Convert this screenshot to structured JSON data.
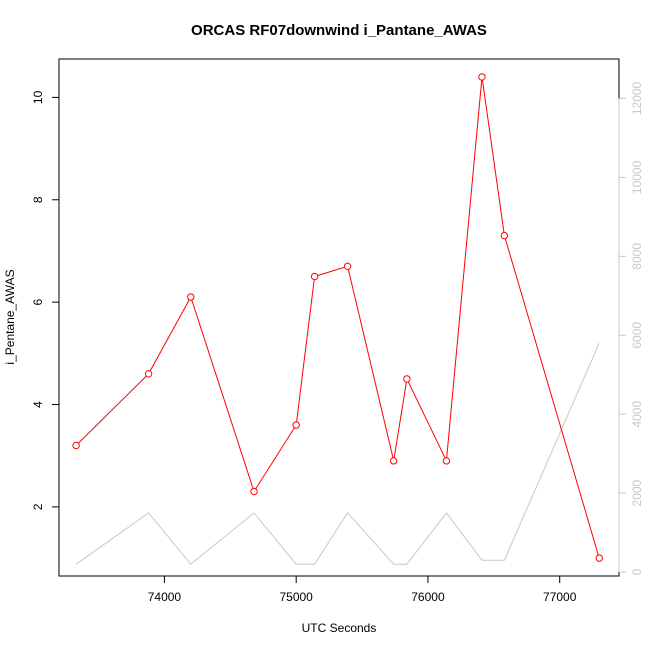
{
  "chart_data": {
    "type": "line",
    "title": "ORCAS RF07downwind i_Pantane_AWAS",
    "xlabel": "UTC Seconds",
    "ylabel": "i_Pentane_AWAS",
    "xlim": [
      73200,
      77450
    ],
    "ylim": [
      0.65,
      10.75
    ],
    "y2lim": [
      -100,
      13000
    ],
    "x_ticks": [
      74000,
      75000,
      76000,
      77000
    ],
    "y_ticks": [
      2,
      4,
      6,
      8,
      10
    ],
    "y2_ticks": [
      0,
      2000,
      4000,
      6000,
      8000,
      10000,
      12000
    ],
    "grid": false,
    "series": [
      {
        "axis": "left",
        "color": "#ff0000",
        "marker": "open-circle",
        "x": [
          73330,
          73880,
          74200,
          74680,
          75000,
          75140,
          75390,
          75740,
          75840,
          76140,
          76410,
          76580,
          77300
        ],
        "y": [
          3.2,
          4.6,
          6.1,
          2.3,
          3.6,
          6.5,
          6.7,
          2.9,
          4.5,
          2.9,
          10.4,
          7.3,
          1.0
        ]
      },
      {
        "axis": "right",
        "color": "#c8c8c8",
        "marker": "none",
        "x": [
          73330,
          73880,
          74200,
          74680,
          75000,
          75140,
          75390,
          75740,
          75840,
          76140,
          76410,
          76580,
          77300
        ],
        "y": [
          200,
          1500,
          200,
          1500,
          200,
          200,
          1500,
          200,
          200,
          1500,
          300,
          300,
          5800
        ]
      }
    ]
  }
}
